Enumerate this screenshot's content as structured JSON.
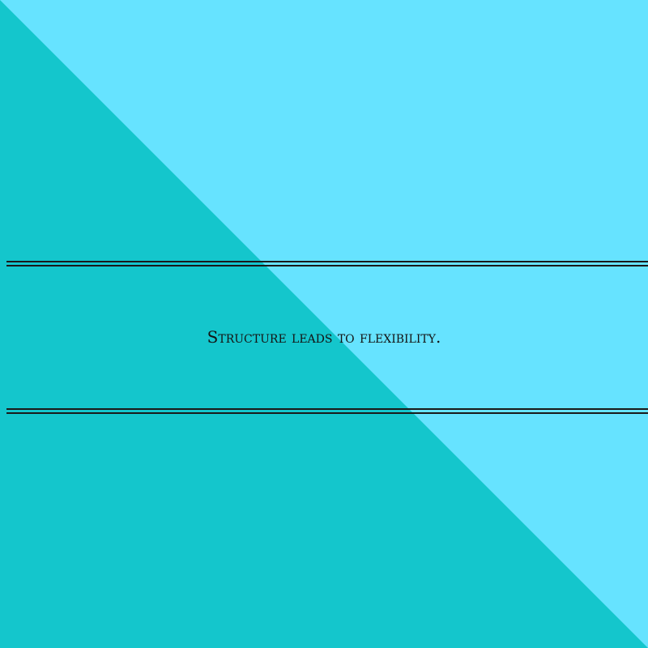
{
  "quote": "Structure leads to flexibility.",
  "colors": {
    "dark_teal": "#14c6cc",
    "light_cyan": "#66e3ff",
    "text": "#141414",
    "rule": "#1a1a1a"
  }
}
